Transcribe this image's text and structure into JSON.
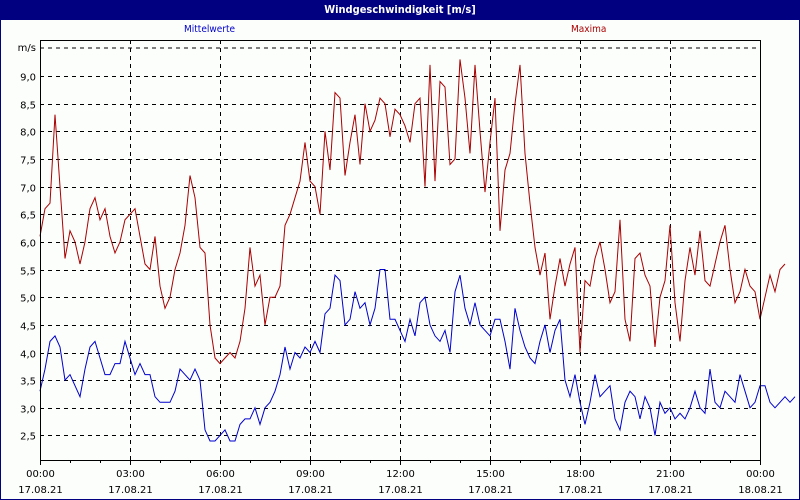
{
  "window": {
    "title": "Windgeschwindigkeit [m/s]"
  },
  "legend": {
    "mean_label": "Mittelwerte",
    "max_label": "Maxima",
    "mean_color": "#0000CC",
    "max_color": "#AA0000"
  },
  "colors": {
    "titlebar": "#000080",
    "background": "#FCFEFC",
    "grid": "#000000"
  },
  "chart_data": {
    "type": "line",
    "title": "Windgeschwindigkeit [m/s]",
    "xlabel": "",
    "ylabel": "m/s",
    "ylim": [
      2.05,
      9.55
    ],
    "grid": true,
    "legend_position": "top",
    "y_ticks": [
      "9,0",
      "8,5",
      "8,0",
      "7,5",
      "7,0",
      "6,5",
      "6,0",
      "5,5",
      "5,0",
      "4,5",
      "4,0",
      "3,5",
      "3,0",
      "2,5"
    ],
    "y_unit_label": "m/s",
    "x_ticks": [
      {
        "time": "00:00",
        "date": "17.08.21"
      },
      {
        "time": "03:00",
        "date": "17.08.21"
      },
      {
        "time": "06:00",
        "date": "17.08.21"
      },
      {
        "time": "09:00",
        "date": "17.08.21"
      },
      {
        "time": "12:00",
        "date": "17.08.21"
      },
      {
        "time": "15:00",
        "date": "17.08.21"
      },
      {
        "time": "18:00",
        "date": "17.08.21"
      },
      {
        "time": "21:00",
        "date": "17.08.21"
      },
      {
        "time": "00:00",
        "date": "18.08.21"
      }
    ],
    "x_interval_minutes": 10,
    "series": [
      {
        "name": "Mittelwerte",
        "color": "#0000CC",
        "values": [
          3.3,
          3.7,
          4.2,
          4.3,
          4.1,
          3.5,
          3.6,
          3.4,
          3.2,
          3.7,
          4.1,
          4.2,
          3.9,
          3.6,
          3.6,
          3.8,
          3.8,
          4.2,
          3.9,
          3.6,
          3.8,
          3.6,
          3.6,
          3.2,
          3.1,
          3.1,
          3.1,
          3.3,
          3.7,
          3.6,
          3.5,
          3.7,
          3.5,
          2.6,
          2.4,
          2.4,
          2.5,
          2.6,
          2.4,
          2.4,
          2.7,
          2.8,
          2.8,
          3.0,
          2.7,
          3.0,
          3.1,
          3.3,
          3.6,
          4.1,
          3.7,
          4.0,
          3.9,
          4.1,
          4.0,
          4.2,
          4.0,
          4.7,
          4.8,
          5.4,
          5.3,
          4.5,
          4.6,
          5.1,
          4.8,
          4.9,
          4.5,
          4.8,
          5.5,
          5.5,
          4.6,
          4.6,
          4.4,
          4.2,
          4.6,
          4.3,
          4.9,
          5.0,
          4.5,
          4.3,
          4.2,
          4.4,
          4.0,
          5.1,
          5.4,
          4.8,
          4.5,
          4.9,
          4.5,
          4.4,
          4.3,
          4.6,
          4.6,
          4.2,
          3.7,
          4.8,
          4.4,
          4.1,
          3.9,
          3.8,
          4.2,
          4.5,
          4.0,
          4.4,
          4.6,
          3.5,
          3.2,
          3.6,
          3.1,
          2.7,
          3.1,
          3.6,
          3.2,
          3.3,
          3.4,
          2.8,
          2.6,
          3.1,
          3.3,
          3.2,
          2.8,
          3.2,
          3.0,
          2.5,
          3.1,
          2.9,
          3.0,
          2.8,
          2.9,
          2.8,
          3.0,
          3.3,
          3.0,
          2.9,
          3.7,
          3.1,
          3.0,
          3.3,
          3.2,
          3.1,
          3.6,
          3.3,
          3.0,
          3.1,
          3.4,
          3.4,
          3.1,
          3.0,
          3.1,
          3.2,
          3.1,
          3.2
        ]
      },
      {
        "name": "Maxima",
        "color": "#AA0000",
        "values": [
          6.1,
          6.6,
          6.7,
          8.3,
          7.0,
          5.7,
          6.2,
          6.0,
          5.6,
          6.0,
          6.6,
          6.8,
          6.4,
          6.6,
          6.1,
          5.8,
          6.0,
          6.4,
          6.5,
          6.6,
          6.1,
          5.6,
          5.5,
          6.1,
          5.2,
          4.8,
          5.0,
          5.5,
          5.8,
          6.3,
          7.2,
          6.8,
          5.9,
          5.8,
          4.5,
          3.9,
          3.8,
          3.9,
          4.0,
          3.9,
          4.2,
          4.8,
          5.9,
          5.2,
          5.4,
          4.5,
          5.0,
          5.0,
          5.2,
          6.3,
          6.5,
          6.8,
          7.1,
          7.8,
          7.1,
          7.0,
          6.5,
          8.0,
          7.3,
          8.7,
          8.6,
          7.2,
          7.8,
          8.3,
          7.4,
          8.5,
          8.0,
          8.2,
          8.6,
          8.5,
          7.9,
          8.4,
          8.3,
          8.1,
          7.8,
          8.5,
          8.6,
          7.0,
          9.2,
          7.1,
          8.9,
          8.8,
          7.4,
          7.5,
          9.3,
          8.6,
          7.6,
          9.2,
          8.0,
          6.9,
          7.8,
          8.6,
          6.2,
          7.3,
          7.6,
          8.5,
          9.2,
          7.6,
          6.7,
          5.9,
          5.4,
          5.8,
          4.6,
          5.2,
          5.7,
          5.2,
          5.6,
          5.9,
          4.0,
          5.3,
          5.2,
          5.7,
          6.0,
          5.5,
          4.9,
          5.1,
          6.4,
          4.6,
          4.2,
          5.7,
          5.8,
          5.4,
          5.2,
          4.1,
          5.0,
          5.3,
          6.3,
          4.9,
          4.2,
          5.3,
          5.9,
          5.4,
          6.2,
          5.3,
          5.2,
          5.6,
          6.0,
          6.3,
          5.5,
          4.9,
          5.1,
          5.5,
          5.2,
          5.1,
          4.6,
          5.0,
          5.4,
          5.1,
          5.5,
          5.6
        ]
      }
    ]
  }
}
